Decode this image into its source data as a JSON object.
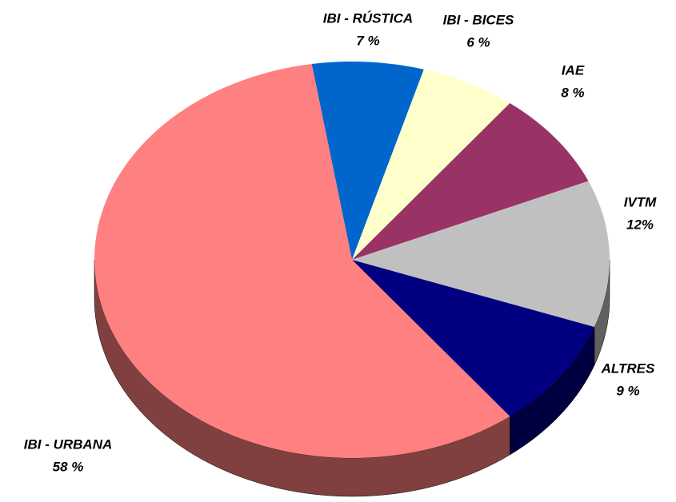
{
  "chart_data": {
    "type": "pie3d",
    "categories": [
      "IBI - RÚSTICA",
      "IBI - BICES",
      "IAE",
      "IVTM",
      "ALTRES",
      "IBI - URBANA"
    ],
    "values": [
      7,
      6,
      8,
      12,
      9,
      58
    ],
    "value_labels": [
      "7 %",
      "6 %",
      "8 %",
      "12%",
      "9 %",
      "58 %"
    ],
    "colors": [
      "#0066cc",
      "#ffffcc",
      "#993366",
      "#c0c0c0",
      "#000080",
      "#ff8080"
    ]
  }
}
